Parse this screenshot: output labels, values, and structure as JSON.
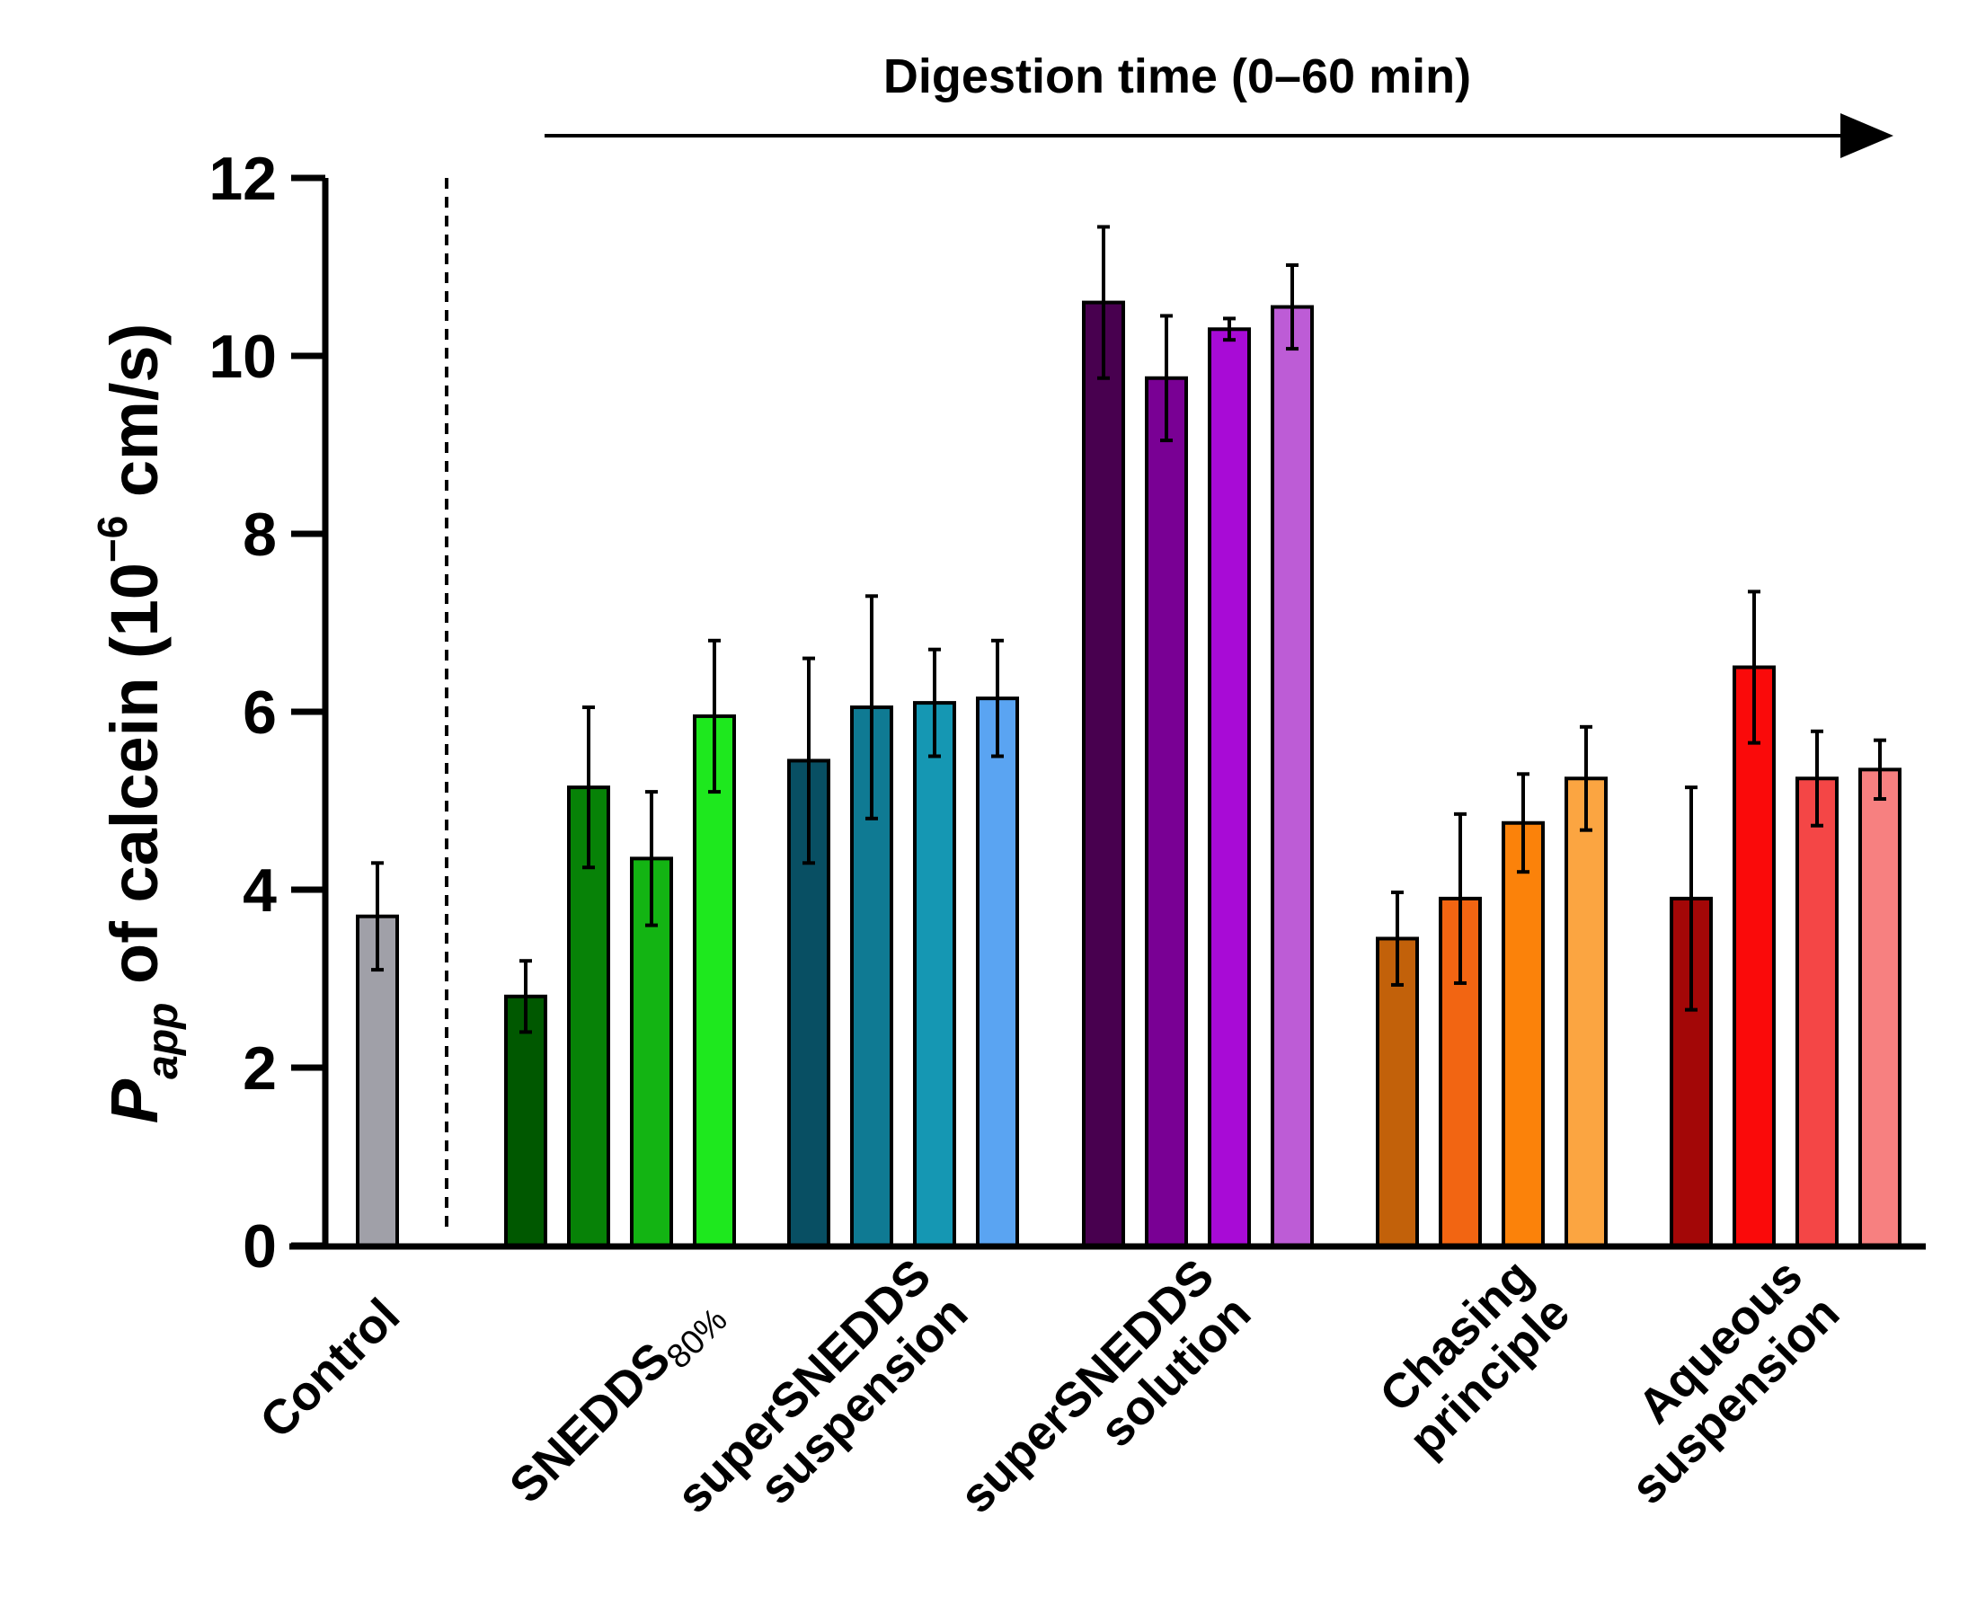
{
  "chart_data": {
    "type": "bar",
    "title": "",
    "annotation": "Digestion time (0–60 min)",
    "ylabel": {
      "prefix": "P",
      "prefix_subscript": "app",
      "text": " of calcein (10",
      "superscript": "−6",
      "suffix": " cm/s)"
    },
    "ylim": [
      0,
      12
    ],
    "yticks": [
      "0",
      "2",
      "4",
      "6",
      "8",
      "10",
      "12"
    ],
    "groups": [
      {
        "label_lines": [
          "Control"
        ],
        "bars": [
          {
            "value": 3.7,
            "error": 0.6,
            "color": "#a0a0a8"
          }
        ]
      },
      {
        "label_lines": [
          "SNEDDS"
        ],
        "label_subscript": "80%",
        "bars": [
          {
            "value": 2.8,
            "error": 0.4,
            "color": "#005800"
          },
          {
            "value": 5.15,
            "error": 0.9,
            "color": "#078207"
          },
          {
            "value": 4.35,
            "error": 0.75,
            "color": "#13b413"
          },
          {
            "value": 5.95,
            "error": 0.85,
            "color": "#1ee81e"
          }
        ]
      },
      {
        "label_lines": [
          "superSNEDDS",
          "suspension"
        ],
        "bars": [
          {
            "value": 5.45,
            "error": 1.15,
            "color": "#084f63"
          },
          {
            "value": 6.05,
            "error": 1.25,
            "color": "#0f7a93"
          },
          {
            "value": 6.1,
            "error": 0.6,
            "color": "#1597b3"
          },
          {
            "value": 6.15,
            "error": 0.65,
            "color": "#5aa4f2"
          }
        ]
      },
      {
        "label_lines": [
          "superSNEDDS",
          "solution"
        ],
        "bars": [
          {
            "value": 10.6,
            "error": 0.85,
            "color": "#48004f"
          },
          {
            "value": 9.75,
            "error": 0.7,
            "color": "#790094"
          },
          {
            "value": 10.3,
            "error": 0.12,
            "color": "#a80bd6"
          },
          {
            "value": 10.55,
            "error": 0.47,
            "color": "#bd5cd6"
          }
        ]
      },
      {
        "label_lines": [
          "Chasing",
          "principle"
        ],
        "bars": [
          {
            "value": 3.45,
            "error": 0.52,
            "color": "#c2610a"
          },
          {
            "value": 3.9,
            "error": 0.95,
            "color": "#f26512"
          },
          {
            "value": 4.75,
            "error": 0.55,
            "color": "#fb820a"
          },
          {
            "value": 5.25,
            "error": 0.58,
            "color": "#fba541"
          }
        ]
      },
      {
        "label_lines": [
          "Aqueous",
          "suspension"
        ],
        "bars": [
          {
            "value": 3.9,
            "error": 1.25,
            "color": "#a30707"
          },
          {
            "value": 6.5,
            "error": 0.85,
            "color": "#fa0a0a"
          },
          {
            "value": 5.25,
            "error": 0.53,
            "color": "#f44646"
          },
          {
            "value": 5.35,
            "error": 0.33,
            "color": "#f78080"
          }
        ]
      }
    ]
  }
}
